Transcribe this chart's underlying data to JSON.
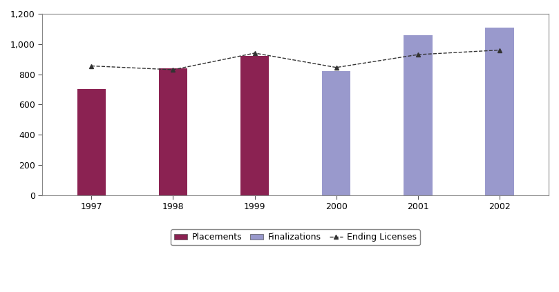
{
  "years": [
    1997,
    1998,
    1999,
    2000,
    2001,
    2002
  ],
  "placements": [
    700,
    840,
    920,
    null,
    null,
    null
  ],
  "finalizations": [
    null,
    null,
    null,
    820,
    1060,
    1110
  ],
  "ending_licenses": [
    855,
    830,
    940,
    845,
    930,
    960
  ],
  "bar_width": 0.35,
  "placements_color": "#8B2252",
  "finalizations_color": "#9999CC",
  "line_color": "#333333",
  "ylim": [
    0,
    1200
  ],
  "yticks": [
    0,
    200,
    400,
    600,
    800,
    1000,
    1200
  ],
  "ytick_labels": [
    "0",
    "200",
    "400",
    "600",
    "800",
    "1,000",
    "1,200"
  ],
  "background_color": "#ffffff",
  "plot_bg_color": "#ffffff",
  "legend_labels": [
    "Placements",
    "Finalizations",
    "Ending Licenses"
  ],
  "title": ""
}
